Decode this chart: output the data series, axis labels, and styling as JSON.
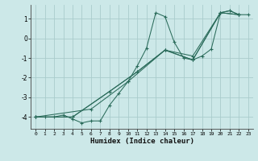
{
  "xlabel": "Humidex (Indice chaleur)",
  "bg_color": "#cce8e8",
  "grid_color": "#aacccc",
  "line_color": "#2a6b5a",
  "xlim": [
    -0.5,
    23.5
  ],
  "ylim": [
    -4.6,
    1.7
  ],
  "yticks": [
    -4,
    -3,
    -2,
    -1,
    0,
    1
  ],
  "xticks": [
    0,
    1,
    2,
    3,
    4,
    5,
    6,
    7,
    8,
    9,
    10,
    11,
    12,
    13,
    14,
    15,
    16,
    17,
    18,
    19,
    20,
    21,
    22,
    23
  ],
  "lines": [
    {
      "x": [
        0,
        1,
        2,
        3,
        4,
        5,
        6,
        7,
        8,
        9,
        10,
        11,
        12,
        13,
        14,
        15,
        16,
        17,
        18,
        19,
        20,
        21,
        22,
        23
      ],
      "y": [
        -4.0,
        -4.0,
        -4.0,
        -3.9,
        -4.1,
        -4.3,
        -4.2,
        -4.2,
        -3.4,
        -2.8,
        -2.2,
        -1.4,
        -0.5,
        1.3,
        1.1,
        -0.2,
        -1.0,
        -1.1,
        -0.9,
        -0.55,
        1.3,
        1.4,
        1.2,
        1.2
      ]
    },
    {
      "x": [
        0,
        4,
        8,
        11,
        14,
        17,
        20,
        21,
        22
      ],
      "y": [
        -4.0,
        -4.0,
        -2.7,
        -1.7,
        -0.6,
        -0.9,
        1.3,
        1.4,
        1.2
      ]
    },
    {
      "x": [
        0,
        4,
        8,
        11,
        14,
        17,
        20,
        22
      ],
      "y": [
        -4.0,
        -4.0,
        -2.7,
        -1.7,
        -0.6,
        -1.1,
        1.3,
        1.2
      ]
    },
    {
      "x": [
        0,
        6,
        10,
        14,
        17,
        20,
        22
      ],
      "y": [
        -4.0,
        -3.6,
        -2.2,
        -0.6,
        -1.1,
        1.3,
        1.2
      ]
    }
  ]
}
